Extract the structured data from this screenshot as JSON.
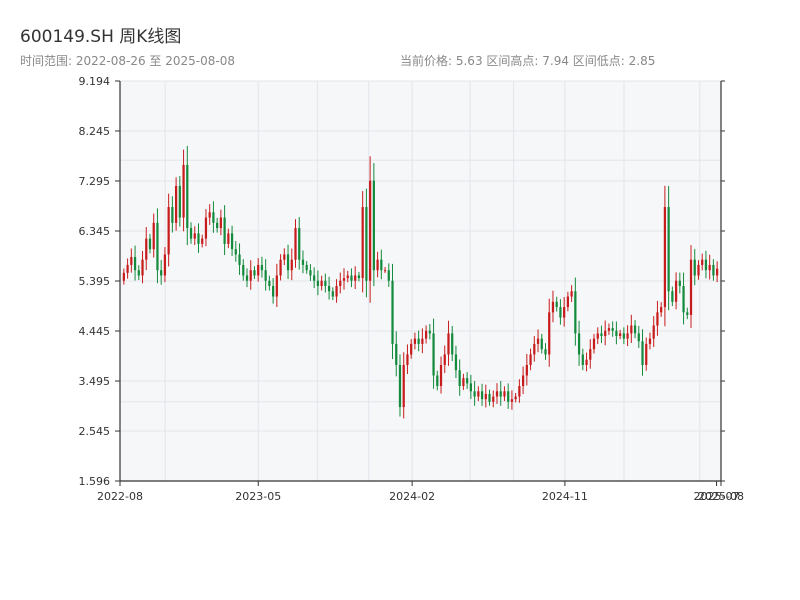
{
  "header": {
    "title": "600149.SH 周K线图",
    "subtitle": "时间范围: 2022-08-26 至 2025-08-08",
    "stats": "当前价格: 5.63  区间高点: 7.94  区间低点: 2.85"
  },
  "chart_data": {
    "type": "candlestick",
    "title": "600149.SH 周K线图",
    "ylim": [
      1.596,
      9.194
    ],
    "y_ticks": [
      "9.194",
      "8.245",
      "7.295",
      "6.345",
      "5.395",
      "4.445",
      "3.495",
      "2.545",
      "1.596"
    ],
    "x_ticks": [
      "2022-08",
      "2023-05",
      "2024-02",
      "2024-11",
      "2025-07",
      "2025-08"
    ],
    "grid": true,
    "colors": {
      "up": "#c71c1c",
      "down": "#138a3c",
      "background": "#f6f7f9",
      "grid": "#e2e5ea",
      "axis": "#333333"
    },
    "date_start": "2022-08-26",
    "date_end": "2025-08-08",
    "closes": [
      5.55,
      5.7,
      5.85,
      5.6,
      5.5,
      5.8,
      6.2,
      6.0,
      6.5,
      5.6,
      5.5,
      5.9,
      6.8,
      6.5,
      7.2,
      6.6,
      7.6,
      6.4,
      6.2,
      6.3,
      6.1,
      6.2,
      6.6,
      6.7,
      6.5,
      6.4,
      6.6,
      6.1,
      6.3,
      6.0,
      5.9,
      5.7,
      5.5,
      5.4,
      5.6,
      5.5,
      5.7,
      5.6,
      5.4,
      5.3,
      5.1,
      5.5,
      5.8,
      5.9,
      5.6,
      5.8,
      6.4,
      5.8,
      5.7,
      5.6,
      5.5,
      5.4,
      5.3,
      5.4,
      5.3,
      5.2,
      5.1,
      5.3,
      5.4,
      5.45,
      5.5,
      5.4,
      5.5,
      5.45,
      6.8,
      5.4,
      7.3,
      5.6,
      5.8,
      5.6,
      5.6,
      5.4,
      4.2,
      3.8,
      3.0,
      3.8,
      4.0,
      4.2,
      4.3,
      4.2,
      4.3,
      4.45,
      4.4,
      3.6,
      3.4,
      3.8,
      4.0,
      4.4,
      4.0,
      3.7,
      3.4,
      3.55,
      3.45,
      3.3,
      3.2,
      3.3,
      3.15,
      3.25,
      3.1,
      3.2,
      3.3,
      3.2,
      3.3,
      3.1,
      3.15,
      3.2,
      3.4,
      3.6,
      3.8,
      4.0,
      4.2,
      4.3,
      4.1,
      4.0,
      4.8,
      5.0,
      4.9,
      4.7,
      4.9,
      5.1,
      5.2,
      4.4,
      4.0,
      3.8,
      3.9,
      4.1,
      4.3,
      4.4,
      4.35,
      4.45,
      4.5,
      4.45,
      4.35,
      4.4,
      4.3,
      4.4,
      4.55,
      4.4,
      4.25,
      3.8,
      4.2,
      4.3,
      4.55,
      4.8,
      4.9,
      6.8,
      5.2,
      5.0,
      5.4,
      5.3,
      4.8,
      4.75,
      5.8,
      5.5,
      5.7,
      5.8,
      5.6,
      5.7,
      5.5,
      5.63
    ]
  }
}
